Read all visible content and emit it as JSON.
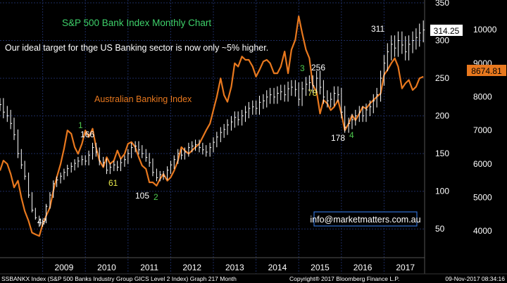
{
  "chart_data": {
    "type": "line",
    "title": "S&P 500 Bank Index Monthly Chart",
    "subtitle": "Our ideal target for thge US Banking sector is now only ~5% higher.",
    "x_ticks": [
      "2009",
      "2010",
      "2011",
      "2012",
      "2013",
      "2014",
      "2015",
      "2016",
      "2017"
    ],
    "left_ticks": [
      4000,
      5000,
      6000,
      7000,
      8000,
      9000,
      10000
    ],
    "right_ticks": [
      50,
      100,
      150,
      200,
      250,
      300,
      350
    ],
    "left_range": [
      3500,
      10800
    ],
    "right_range": [
      25,
      350
    ],
    "series": [
      {
        "name": "Australian Banking Index",
        "axis": "left",
        "color": "#e8781e",
        "x": [
          2008.0,
          2008.08,
          2008.17,
          2008.25,
          2008.33,
          2008.42,
          2008.5,
          2008.58,
          2008.67,
          2008.75,
          2008.83,
          2008.92,
          2009.0,
          2009.08,
          2009.17,
          2009.25,
          2009.33,
          2009.42,
          2009.5,
          2009.58,
          2009.67,
          2009.75,
          2009.83,
          2009.92,
          2010.0,
          2010.08,
          2010.17,
          2010.25,
          2010.33,
          2010.42,
          2010.5,
          2010.58,
          2010.67,
          2010.75,
          2010.83,
          2010.92,
          2011.0,
          2011.08,
          2011.17,
          2011.25,
          2011.33,
          2011.42,
          2011.5,
          2011.58,
          2011.67,
          2011.75,
          2011.83,
          2011.92,
          2012.0,
          2012.08,
          2012.17,
          2012.25,
          2012.33,
          2012.42,
          2012.5,
          2012.58,
          2012.67,
          2012.75,
          2012.83,
          2012.92,
          2013.0,
          2013.08,
          2013.17,
          2013.25,
          2013.33,
          2013.42,
          2013.5,
          2013.58,
          2013.67,
          2013.75,
          2013.83,
          2013.92,
          2014.0,
          2014.08,
          2014.17,
          2014.25,
          2014.33,
          2014.42,
          2014.5,
          2014.58,
          2014.67,
          2014.75,
          2014.83,
          2014.92,
          2015.0,
          2015.08,
          2015.17,
          2015.25,
          2015.33,
          2015.42,
          2015.5,
          2015.58,
          2015.67,
          2015.75,
          2015.83,
          2015.92,
          2016.0,
          2016.08,
          2016.17,
          2016.25,
          2016.33,
          2016.42,
          2016.5,
          2016.58,
          2016.67,
          2016.75,
          2016.83,
          2016.92,
          2017.0,
          2017.08,
          2017.17,
          2017.25,
          2017.33,
          2017.42,
          2017.5,
          2017.58,
          2017.67,
          2017.75,
          2017.83,
          2017.92
        ],
        "values": [
          5800,
          6100,
          6000,
          5700,
          5300,
          5500,
          5000,
          4600,
          4300,
          3950,
          3900,
          3850,
          4200,
          4450,
          4700,
          5200,
          5600,
          6000,
          6450,
          7000,
          6900,
          6500,
          6300,
          6600,
          7000,
          6800,
          7050,
          6500,
          6100,
          5900,
          6200,
          6000,
          6100,
          6400,
          6150,
          6300,
          6600,
          6650,
          6500,
          6200,
          5950,
          5850,
          5450,
          5450,
          5350,
          5550,
          5700,
          5500,
          5600,
          5800,
          6100,
          6500,
          6400,
          6300,
          6400,
          6500,
          6600,
          6800,
          7000,
          7200,
          7600,
          8000,
          8550,
          8050,
          7850,
          8300,
          9000,
          8900,
          9200,
          9100,
          9100,
          8900,
          8600,
          8800,
          9050,
          9100,
          9000,
          8700,
          8700,
          8900,
          9350,
          8700,
          9400,
          9700,
          10400,
          9900,
          9400,
          9150,
          8350,
          8150,
          7500,
          7900,
          7800,
          7600,
          7700,
          7900,
          7500,
          7000,
          7200,
          7450,
          7300,
          7500,
          7700,
          7650,
          7800,
          7900,
          8000,
          8100,
          8650,
          8800,
          9000,
          9150,
          8900,
          8250,
          8400,
          8500,
          8200,
          8300,
          8550,
          8600
        ]
      },
      {
        "name": "S&P 500 Bank Index",
        "axis": "right",
        "color": "#ffffff",
        "x": [
          2008.0,
          2008.08,
          2008.17,
          2008.25,
          2008.33,
          2008.42,
          2008.5,
          2008.58,
          2008.67,
          2008.75,
          2008.83,
          2008.92,
          2009.0,
          2009.08,
          2009.17,
          2009.25,
          2009.33,
          2009.42,
          2009.5,
          2009.58,
          2009.67,
          2009.75,
          2009.83,
          2009.92,
          2010.0,
          2010.08,
          2010.17,
          2010.25,
          2010.33,
          2010.42,
          2010.5,
          2010.58,
          2010.67,
          2010.75,
          2010.83,
          2010.92,
          2011.0,
          2011.08,
          2011.17,
          2011.25,
          2011.33,
          2011.42,
          2011.5,
          2011.58,
          2011.67,
          2011.75,
          2011.83,
          2011.92,
          2012.0,
          2012.08,
          2012.17,
          2012.25,
          2012.33,
          2012.42,
          2012.5,
          2012.58,
          2012.67,
          2012.75,
          2012.83,
          2012.92,
          2013.0,
          2013.08,
          2013.17,
          2013.25,
          2013.33,
          2013.42,
          2013.5,
          2013.58,
          2013.67,
          2013.75,
          2013.83,
          2013.92,
          2014.0,
          2014.08,
          2014.17,
          2014.25,
          2014.33,
          2014.42,
          2014.5,
          2014.58,
          2014.67,
          2014.75,
          2014.83,
          2014.92,
          2015.0,
          2015.08,
          2015.17,
          2015.25,
          2015.33,
          2015.42,
          2015.5,
          2015.58,
          2015.67,
          2015.75,
          2015.83,
          2015.92,
          2016.0,
          2016.08,
          2016.17,
          2016.25,
          2016.33,
          2016.42,
          2016.5,
          2016.58,
          2016.67,
          2016.75,
          2016.83,
          2016.92,
          2017.0,
          2017.08,
          2017.17,
          2017.25,
          2017.33,
          2017.42,
          2017.5,
          2017.58,
          2017.67,
          2017.75,
          2017.83,
          2017.92
        ],
        "values": [
          215,
          205,
          200,
          190,
          175,
          150,
          135,
          120,
          95,
          75,
          65,
          55,
          60,
          80,
          95,
          110,
          115,
          120,
          125,
          130,
          133,
          137,
          140,
          142,
          140,
          148,
          158,
          152,
          140,
          138,
          128,
          132,
          135,
          132,
          138,
          142,
          150,
          158,
          160,
          155,
          150,
          145,
          138,
          125,
          118,
          122,
          120,
          128,
          135,
          142,
          150,
          148,
          152,
          158,
          160,
          162,
          158,
          155,
          152,
          158,
          165,
          172,
          178,
          182,
          188,
          192,
          198,
          195,
          200,
          205,
          210,
          212,
          210,
          218,
          220,
          225,
          228,
          225,
          230,
          232,
          228,
          236,
          238,
          235,
          222,
          236,
          242,
          244,
          240,
          250,
          238,
          225,
          220,
          222,
          230,
          228,
          205,
          185,
          190,
          195,
          200,
          205,
          200,
          208,
          212,
          220,
          228,
          250,
          270,
          285,
          295,
          290,
          300,
          294,
          285,
          295,
          300,
          304,
          310,
          314
        ]
      }
    ],
    "annotations": [
      {
        "text": "Australian Banking Index",
        "color": "#e8781e"
      },
      {
        "text": "1",
        "color": "#4ec94e"
      },
      {
        "text": "166",
        "color": "#ffffff"
      },
      {
        "text": "61",
        "color": "#e8e84a"
      },
      {
        "text": "105",
        "color": "#ffffff"
      },
      {
        "text": "2",
        "color": "#4ec94e"
      },
      {
        "text": "47",
        "color": "#ffffff"
      },
      {
        "text": "3",
        "color": "#4ec94e"
      },
      {
        "text": "256",
        "color": "#ffffff"
      },
      {
        "text": "78",
        "color": "#e8e84a"
      },
      {
        "text": "178",
        "color": "#ffffff"
      },
      {
        "text": "4",
        "color": "#4ec94e"
      },
      {
        "text": "311",
        "color": "#ffffff"
      }
    ],
    "last_values": {
      "right": "314.25",
      "left": "8674.81"
    },
    "watermark": "info@marketmatters.com.au",
    "footer_left": "SSBANKX Index (S&P 500 Banks Industry Group GICS Level 2 Index) Graph 217  Month",
    "footer_mid": "Copyright® 2017 Bloomberg Finance L.P.",
    "footer_right": "09-Nov-2017 08:34:16",
    "colors": {
      "background": "#000000",
      "grid": "#1c2b5e",
      "title": "#3ed06a",
      "axis_text": "#ffffff",
      "box_fill_right": "#ffffff",
      "box_fill_left": "#e8781e",
      "watermark_border": "#2f6fd0"
    }
  }
}
